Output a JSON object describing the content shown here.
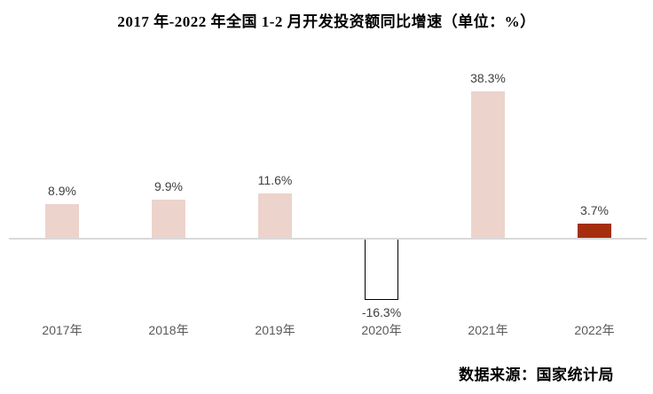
{
  "chart_data": {
    "type": "bar",
    "title": "2017 年-2022 年全国 1-2 月开发投资额同比增速（单位：%）",
    "categories": [
      "2017年",
      "2018年",
      "2019年",
      "2020年",
      "2021年",
      "2022年"
    ],
    "values": [
      8.9,
      9.9,
      11.6,
      -16.3,
      38.3,
      3.7
    ],
    "value_labels": [
      "8.9%",
      "9.9%",
      "11.6%",
      "-16.3%",
      "38.3%",
      "3.7%"
    ],
    "xlabel": "",
    "ylabel": "",
    "ylim": [
      -20,
      45
    ],
    "grid": false,
    "legend": "none",
    "bar_fills": [
      "#ecd3cc",
      "#ecd3cc",
      "#ecd3cc",
      "#ffffff",
      "#ecd3cc",
      "#a42f0e"
    ],
    "bar_borders": [
      "none",
      "none",
      "none",
      "#000000",
      "none",
      "none"
    ],
    "colors": {
      "default_fill": "#ecd3cc",
      "highlight_fill": "#a42f0e",
      "negative_fill": "#ffffff",
      "negative_border": "#000000",
      "axis_line": "#d9d9d9",
      "value_label_text": "#404040",
      "category_label_text": "#595959",
      "title_text": "#000000"
    }
  },
  "source_note": "数据来源：国家统计局"
}
